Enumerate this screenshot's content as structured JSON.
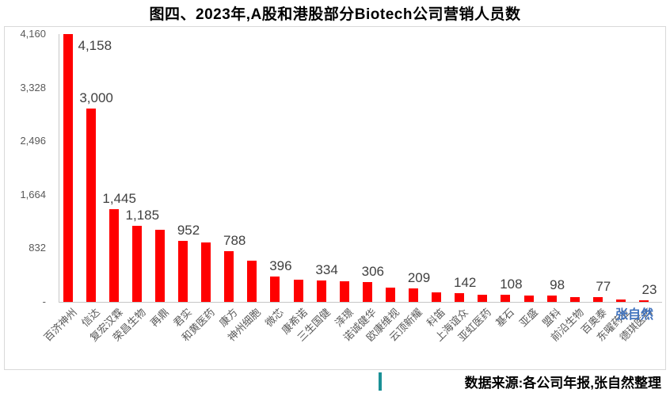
{
  "page": {
    "title": "图四、2023年,A股和港股部分Biotech公司营销人员数",
    "watermark": "张自然",
    "source_note": "数据来源:各公司年报,张自然整理"
  },
  "colors": {
    "bar": "#FF0000",
    "title_text": "#000000",
    "data_label": "#404040",
    "axis_label": "#595959",
    "axis_line": "#C6C6C6",
    "frame_border": "#D9D9D9",
    "watermark": "#4173BE",
    "source_accent": "#1A9096"
  },
  "chart_data": {
    "type": "bar",
    "title": "图四、2023年,A股和港股部分Biotech公司营销人员数",
    "categories": [
      "百济神州",
      "信达",
      "复宏汉霖",
      "荣昌生物",
      "再鼎",
      "君实",
      "和黄医药",
      "康方",
      "神州细胞",
      "微芯",
      "康希诺",
      "三生国健",
      "泽璟",
      "诺诚健华",
      "欧康维视",
      "云顶新耀",
      "科笛",
      "上海谊众",
      "亚虹医药",
      "基石",
      "亚盛",
      "盟科",
      "前沿生物",
      "百奥泰",
      "东曜药业",
      "德琪医药"
    ],
    "values": [
      4158,
      3000,
      1445,
      1185,
      1120,
      952,
      920,
      788,
      640,
      396,
      345,
      334,
      320,
      306,
      225,
      209,
      150,
      142,
      115,
      108,
      100,
      98,
      80,
      77,
      35,
      23
    ],
    "data_labels": [
      "4,158",
      "3,000",
      "1,445",
      "1,185",
      null,
      "952",
      null,
      "788",
      null,
      "396",
      null,
      "334",
      null,
      "306",
      null,
      "209",
      null,
      "142",
      null,
      "108",
      null,
      "98",
      null,
      "77",
      null,
      "23"
    ],
    "xlabel": "",
    "ylabel": "",
    "ylim": [
      0,
      4160
    ],
    "y_ticks": [
      "4,160",
      "3,328",
      "2,496",
      "1,664",
      "832",
      "-"
    ],
    "y_tick_values": [
      4160,
      3328,
      2496,
      1664,
      832,
      0
    ],
    "grid": false,
    "legend": false,
    "bar_color": "#FF0000",
    "note": "values without a printed data label are estimated from bar heights"
  }
}
